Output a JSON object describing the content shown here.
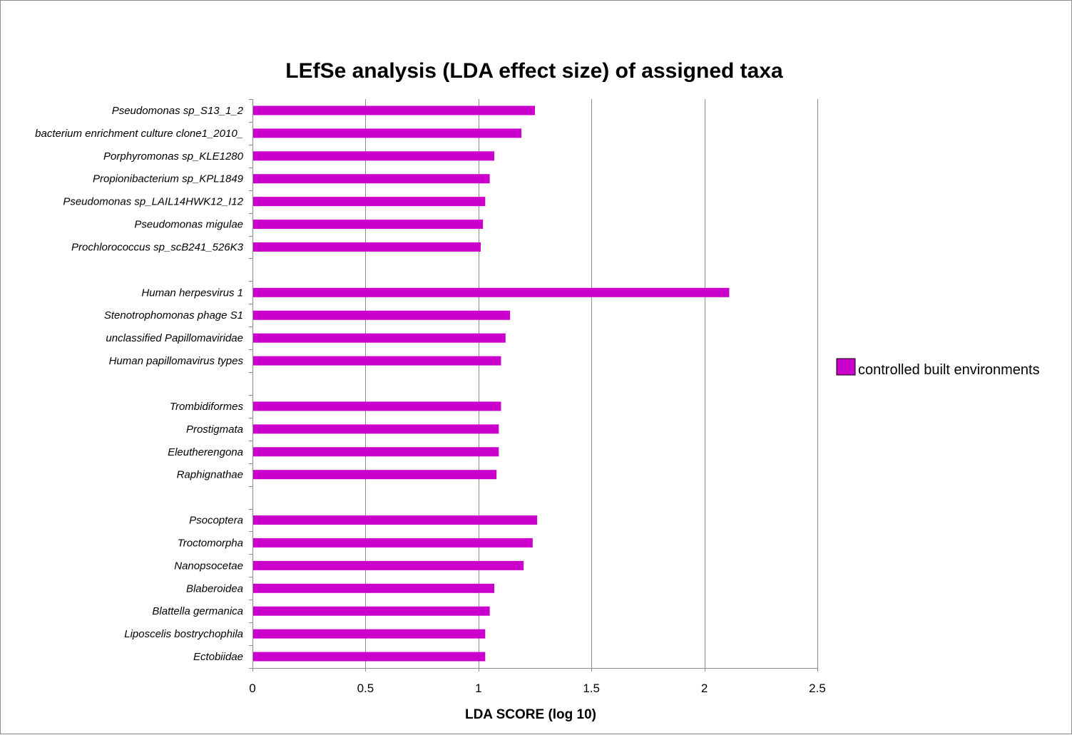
{
  "chart_data": {
    "type": "bar",
    "orientation": "horizontal",
    "title": "LEfSe analysis (LDA effect size) of assigned taxa",
    "xlabel": "LDA SCORE (log 10)",
    "ylabel": "",
    "xlim": [
      0,
      2.5
    ],
    "xticks": [
      0,
      0.5,
      1,
      1.5,
      2,
      2.5
    ],
    "xtick_labels": [
      "0",
      "0.5",
      "1",
      "1.5",
      "2",
      "2.5"
    ],
    "grid": "vertical major gridlines",
    "legend_position": "right",
    "bar_color": "#cc00cc",
    "categories": [
      "Pseudomonas sp_S13_1_2",
      "bacterium enrichment culture clone1_2010_",
      "Porphyromonas sp_KLE1280",
      "Propionibacterium sp_KPL1849",
      "Pseudomonas sp_LAIL14HWK12_I12",
      "Pseudomonas migulae",
      "Prochlorococcus sp_scB241_526K3",
      "",
      "Human herpesvirus 1",
      "Stenotrophomonas phage S1",
      "unclassified Papillomaviridae",
      "Human papillomavirus types",
      "",
      "Trombidiformes",
      "Prostigmata",
      "Eleutherengona",
      "Raphignathae",
      "",
      "Psocoptera",
      "Troctomorpha",
      "Nanopsocetae",
      "Blaberoidea",
      "Blattella germanica",
      "Liposcelis bostrychophila",
      "Ectobiidae"
    ],
    "series": [
      {
        "name": "controlled built environments",
        "color": "#cc00cc",
        "values": [
          1.25,
          1.19,
          1.07,
          1.05,
          1.03,
          1.02,
          1.01,
          null,
          2.11,
          1.14,
          1.12,
          1.1,
          null,
          1.1,
          1.09,
          1.09,
          1.08,
          null,
          1.26,
          1.24,
          1.2,
          1.07,
          1.05,
          1.03,
          1.03
        ]
      }
    ]
  }
}
